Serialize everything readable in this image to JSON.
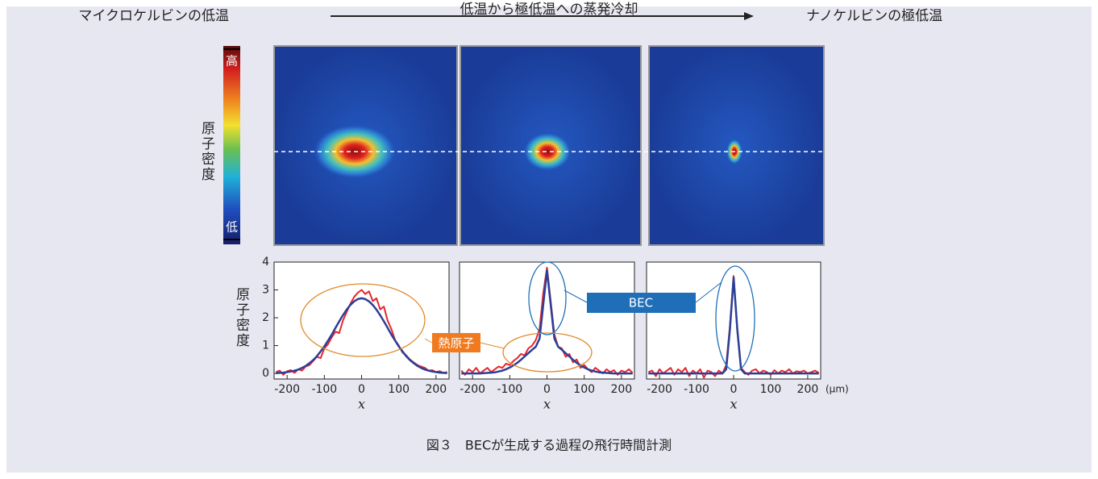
{
  "header": {
    "left": "マイクロケルビンの低温",
    "center": "低温から極低温への蒸発冷却",
    "right": "ナノケルビンの極低温"
  },
  "colorbar": {
    "label": "原子密度",
    "high": "高",
    "low": "低"
  },
  "annotations": {
    "bec": "BEC",
    "thermal": "熱原子"
  },
  "caption": "図３　BECが生成する過程の飛行時間計測",
  "chart_data": [
    {
      "type": "line",
      "xlabel": "x",
      "ylabel": "原子密度",
      "x": [
        -230,
        -220,
        -210,
        -200,
        -190,
        -180,
        -170,
        -160,
        -150,
        -140,
        -130,
        -120,
        -110,
        -100,
        -90,
        -80,
        -70,
        -60,
        -50,
        -40,
        -30,
        -20,
        -10,
        0,
        10,
        20,
        30,
        40,
        50,
        60,
        70,
        80,
        90,
        100,
        110,
        120,
        130,
        140,
        150,
        160,
        170,
        180,
        190,
        200,
        210,
        220,
        230
      ],
      "xlim": [
        -235,
        235
      ],
      "ylim": [
        -0.2,
        4
      ],
      "xticks": [
        -200,
        -100,
        0,
        100,
        200
      ],
      "yticks": [
        0,
        1,
        2,
        3,
        4
      ],
      "series": [
        {
          "color": "#e8252a",
          "values": [
            0.05,
            0.1,
            -0.05,
            0.08,
            0.12,
            0.02,
            0.15,
            0.1,
            0.25,
            0.3,
            0.45,
            0.6,
            0.55,
            0.9,
            1.05,
            1.3,
            1.5,
            1.45,
            1.9,
            2.2,
            2.5,
            2.75,
            2.9,
            3.0,
            2.85,
            2.95,
            2.6,
            2.7,
            2.3,
            2.4,
            1.9,
            1.6,
            1.2,
            1.0,
            0.75,
            0.65,
            0.5,
            0.4,
            0.3,
            0.25,
            0.2,
            0.1,
            0.12,
            0.05,
            0.08,
            0.02,
            0.05
          ]
        },
        {
          "color": "#2b3f98",
          "values": [
            0.01,
            0.02,
            0.03,
            0.05,
            0.07,
            0.1,
            0.14,
            0.2,
            0.27,
            0.37,
            0.48,
            0.62,
            0.79,
            0.97,
            1.18,
            1.4,
            1.64,
            1.87,
            2.09,
            2.29,
            2.46,
            2.59,
            2.67,
            2.7,
            2.67,
            2.59,
            2.46,
            2.29,
            2.09,
            1.87,
            1.64,
            1.4,
            1.18,
            0.97,
            0.79,
            0.62,
            0.48,
            0.37,
            0.27,
            0.2,
            0.14,
            0.1,
            0.07,
            0.05,
            0.03,
            0.02,
            0.01
          ]
        }
      ]
    },
    {
      "type": "line",
      "xlabel": "x",
      "x": [
        -230,
        -220,
        -210,
        -200,
        -190,
        -180,
        -170,
        -160,
        -150,
        -140,
        -130,
        -120,
        -110,
        -100,
        -90,
        -80,
        -70,
        -60,
        -50,
        -40,
        -30,
        -20,
        -10,
        0,
        10,
        20,
        30,
        40,
        50,
        60,
        70,
        80,
        90,
        100,
        110,
        120,
        130,
        140,
        150,
        160,
        170,
        180,
        190,
        200,
        210,
        220,
        230
      ],
      "xlim": [
        -235,
        235
      ],
      "ylim": [
        -0.2,
        4
      ],
      "xticks": [
        -200,
        -100,
        0,
        100,
        200
      ],
      "series": [
        {
          "color": "#e8252a",
          "values": [
            0.1,
            -0.05,
            0.15,
            0.05,
            0.2,
            0.0,
            0.1,
            0.2,
            0.05,
            0.15,
            0.25,
            0.2,
            0.35,
            0.3,
            0.45,
            0.55,
            0.7,
            0.65,
            0.9,
            1.0,
            1.2,
            1.6,
            2.9,
            3.8,
            2.6,
            1.4,
            0.95,
            0.9,
            0.6,
            0.7,
            0.4,
            0.5,
            0.2,
            0.3,
            0.15,
            0.05,
            0.2,
            0.1,
            0.0,
            0.15,
            0.05,
            0.12,
            -0.05,
            0.1,
            0.05,
            0.15,
            0.02
          ]
        },
        {
          "color": "#2b3f98",
          "values": [
            0,
            0,
            0,
            0,
            0,
            0,
            0.01,
            0.02,
            0.03,
            0.04,
            0.07,
            0.1,
            0.15,
            0.21,
            0.29,
            0.38,
            0.49,
            0.61,
            0.73,
            0.85,
            0.96,
            1.25,
            2.48,
            3.7,
            2.48,
            1.25,
            0.96,
            0.85,
            0.73,
            0.61,
            0.49,
            0.38,
            0.29,
            0.21,
            0.15,
            0.1,
            0.07,
            0.04,
            0.03,
            0.02,
            0.01,
            0,
            0,
            0,
            0,
            0,
            0
          ]
        }
      ]
    },
    {
      "type": "line",
      "xlabel": "x",
      "x_unit": "(μm)",
      "x": [
        -230,
        -220,
        -210,
        -200,
        -190,
        -180,
        -170,
        -160,
        -150,
        -140,
        -130,
        -120,
        -110,
        -100,
        -90,
        -80,
        -70,
        -60,
        -50,
        -40,
        -30,
        -20,
        -10,
        0,
        10,
        20,
        30,
        40,
        50,
        60,
        70,
        80,
        90,
        100,
        110,
        120,
        130,
        140,
        150,
        160,
        170,
        180,
        190,
        200,
        210,
        220,
        230
      ],
      "xlim": [
        -235,
        235
      ],
      "ylim": [
        -0.2,
        4
      ],
      "xticks": [
        -200,
        -100,
        0,
        100,
        200
      ],
      "series": [
        {
          "color": "#e8252a",
          "values": [
            0.05,
            0.1,
            -0.1,
            0.15,
            0.0,
            0.1,
            0.2,
            -0.05,
            0.15,
            0.05,
            0.2,
            -0.1,
            0.1,
            0.0,
            0.15,
            -0.15,
            0.1,
            0.05,
            -0.1,
            0.1,
            0.0,
            0.3,
            1.7,
            3.5,
            1.5,
            0.2,
            0.05,
            -0.05,
            0.1,
            0.15,
            0.0,
            0.1,
            0.05,
            -0.05,
            0.12,
            0.0,
            0.1,
            0.05,
            0.15,
            0.0,
            0.08,
            0.05,
            0.1,
            0.0,
            0.05,
            0.1,
            0.02
          ]
        },
        {
          "color": "#2b3f98",
          "values": [
            0,
            0,
            0,
            0,
            0,
            0,
            0,
            0,
            0,
            0,
            0,
            0,
            0,
            0,
            0,
            0,
            0,
            0,
            0,
            0,
            0,
            0.15,
            1.58,
            3.45,
            1.58,
            0.15,
            0,
            0,
            0,
            0,
            0,
            0,
            0,
            0,
            0,
            0,
            0,
            0,
            0,
            0,
            0,
            0,
            0,
            0,
            0,
            0,
            0
          ]
        }
      ]
    }
  ]
}
